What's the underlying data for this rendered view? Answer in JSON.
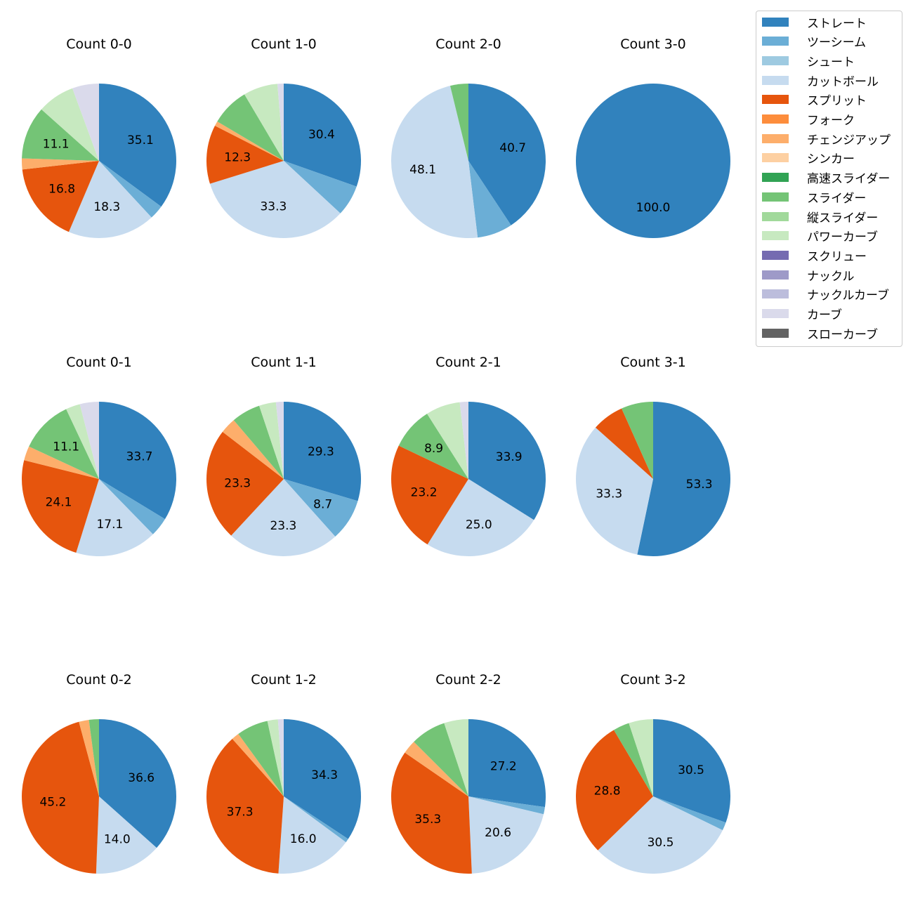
{
  "chart_data": {
    "type": "pie",
    "legend": {
      "placement": "top-right",
      "entries": [
        {
          "name": "ストレート",
          "color": "#3182bd"
        },
        {
          "name": "ツーシーム",
          "color": "#6baed6"
        },
        {
          "name": "シュート",
          "color": "#9ecae1"
        },
        {
          "name": "カットボール",
          "color": "#c6dbef"
        },
        {
          "name": "スプリット",
          "color": "#e6550d"
        },
        {
          "name": "フォーク",
          "color": "#fd8d3c"
        },
        {
          "name": "チェンジアップ",
          "color": "#fdae6b"
        },
        {
          "name": "シンカー",
          "color": "#fdd0a2"
        },
        {
          "name": "高速スライダー",
          "color": "#31a354"
        },
        {
          "name": "スライダー",
          "color": "#74c476"
        },
        {
          "name": "縦スライダー",
          "color": "#a1d99b"
        },
        {
          "name": "パワーカーブ",
          "color": "#c7e9c0"
        },
        {
          "name": "スクリュー",
          "color": "#756bb1"
        },
        {
          "name": "ナックル",
          "color": "#9e9ac8"
        },
        {
          "name": "ナックルカーブ",
          "color": "#bcbddc"
        },
        {
          "name": "カーブ",
          "color": "#dadaeb"
        },
        {
          "name": "スローカーブ",
          "color": "#636363"
        }
      ]
    },
    "pies": [
      {
        "title": "Count 0-0",
        "slices": [
          {
            "pitch": "ストレート",
            "value": 35.1,
            "label": "35.1"
          },
          {
            "pitch": "ツーシーム",
            "value": 3.0,
            "label": ""
          },
          {
            "pitch": "カットボール",
            "value": 18.3,
            "label": "18.3"
          },
          {
            "pitch": "スプリット",
            "value": 16.8,
            "label": "16.8"
          },
          {
            "pitch": "チェンジアップ",
            "value": 2.3,
            "label": ""
          },
          {
            "pitch": "スライダー",
            "value": 11.1,
            "label": "11.1"
          },
          {
            "pitch": "パワーカーブ",
            "value": 7.8,
            "label": ""
          },
          {
            "pitch": "カーブ",
            "value": 5.6,
            "label": ""
          }
        ]
      },
      {
        "title": "Count 1-0",
        "slices": [
          {
            "pitch": "ストレート",
            "value": 30.4,
            "label": "30.4"
          },
          {
            "pitch": "ツーシーム",
            "value": 6.5,
            "label": ""
          },
          {
            "pitch": "カットボール",
            "value": 33.3,
            "label": "33.3"
          },
          {
            "pitch": "スプリット",
            "value": 12.3,
            "label": "12.3"
          },
          {
            "pitch": "チェンジアップ",
            "value": 1.0,
            "label": ""
          },
          {
            "pitch": "スライダー",
            "value": 8.0,
            "label": ""
          },
          {
            "pitch": "パワーカーブ",
            "value": 7.2,
            "label": ""
          },
          {
            "pitch": "カーブ",
            "value": 1.3,
            "label": ""
          }
        ]
      },
      {
        "title": "Count 2-0",
        "slices": [
          {
            "pitch": "ストレート",
            "value": 40.7,
            "label": "40.7"
          },
          {
            "pitch": "ツーシーム",
            "value": 7.4,
            "label": ""
          },
          {
            "pitch": "カットボール",
            "value": 48.1,
            "label": "48.1"
          },
          {
            "pitch": "スライダー",
            "value": 3.8,
            "label": ""
          }
        ]
      },
      {
        "title": "Count 3-0",
        "slices": [
          {
            "pitch": "ストレート",
            "value": 100.0,
            "label": "100.0"
          }
        ]
      },
      {
        "title": "Count 0-1",
        "slices": [
          {
            "pitch": "ストレート",
            "value": 33.7,
            "label": "33.7"
          },
          {
            "pitch": "ツーシーム",
            "value": 4.0,
            "label": ""
          },
          {
            "pitch": "カットボール",
            "value": 17.1,
            "label": "17.1"
          },
          {
            "pitch": "スプリット",
            "value": 24.1,
            "label": "24.1"
          },
          {
            "pitch": "チェンジアップ",
            "value": 3.0,
            "label": ""
          },
          {
            "pitch": "スライダー",
            "value": 11.1,
            "label": "11.1"
          },
          {
            "pitch": "パワーカーブ",
            "value": 3.0,
            "label": ""
          },
          {
            "pitch": "カーブ",
            "value": 4.0,
            "label": ""
          }
        ]
      },
      {
        "title": "Count 1-1",
        "slices": [
          {
            "pitch": "ストレート",
            "value": 29.3,
            "label": "29.3"
          },
          {
            "pitch": "ツーシーム",
            "value": 8.7,
            "label": "8.7"
          },
          {
            "pitch": "カットボール",
            "value": 23.3,
            "label": "23.3"
          },
          {
            "pitch": "スプリット",
            "value": 23.3,
            "label": "23.3"
          },
          {
            "pitch": "チェンジアップ",
            "value": 3.3,
            "label": ""
          },
          {
            "pitch": "スライダー",
            "value": 6.0,
            "label": ""
          },
          {
            "pitch": "パワーカーブ",
            "value": 3.5,
            "label": ""
          },
          {
            "pitch": "カーブ",
            "value": 1.6,
            "label": ""
          }
        ]
      },
      {
        "title": "Count 2-1",
        "slices": [
          {
            "pitch": "ストレート",
            "value": 33.9,
            "label": "33.9"
          },
          {
            "pitch": "カットボール",
            "value": 25.0,
            "label": "25.0"
          },
          {
            "pitch": "スプリット",
            "value": 23.2,
            "label": "23.2"
          },
          {
            "pitch": "スライダー",
            "value": 8.9,
            "label": "8.9"
          },
          {
            "pitch": "パワーカーブ",
            "value": 7.2,
            "label": ""
          },
          {
            "pitch": "カーブ",
            "value": 1.8,
            "label": ""
          }
        ]
      },
      {
        "title": "Count 3-1",
        "slices": [
          {
            "pitch": "ストレート",
            "value": 53.3,
            "label": "53.3"
          },
          {
            "pitch": "カットボール",
            "value": 33.3,
            "label": "33.3"
          },
          {
            "pitch": "スプリット",
            "value": 6.7,
            "label": ""
          },
          {
            "pitch": "スライダー",
            "value": 6.7,
            "label": ""
          }
        ]
      },
      {
        "title": "Count 0-2",
        "slices": [
          {
            "pitch": "ストレート",
            "value": 36.6,
            "label": "36.6"
          },
          {
            "pitch": "カットボール",
            "value": 14.0,
            "label": "14.0"
          },
          {
            "pitch": "スプリット",
            "value": 45.2,
            "label": "45.2"
          },
          {
            "pitch": "チェンジアップ",
            "value": 2.1,
            "label": ""
          },
          {
            "pitch": "スライダー",
            "value": 2.1,
            "label": ""
          }
        ]
      },
      {
        "title": "Count 1-2",
        "slices": [
          {
            "pitch": "ストレート",
            "value": 34.3,
            "label": "34.3"
          },
          {
            "pitch": "ツーシーム",
            "value": 0.8,
            "label": ""
          },
          {
            "pitch": "カットボール",
            "value": 16.0,
            "label": "16.0"
          },
          {
            "pitch": "スプリット",
            "value": 37.3,
            "label": "37.3"
          },
          {
            "pitch": "チェンジアップ",
            "value": 1.6,
            "label": ""
          },
          {
            "pitch": "スライダー",
            "value": 6.6,
            "label": ""
          },
          {
            "pitch": "パワーカーブ",
            "value": 2.2,
            "label": ""
          },
          {
            "pitch": "カーブ",
            "value": 1.2,
            "label": ""
          }
        ]
      },
      {
        "title": "Count 2-2",
        "slices": [
          {
            "pitch": "ストレート",
            "value": 27.2,
            "label": "27.2"
          },
          {
            "pitch": "ツーシーム",
            "value": 1.5,
            "label": ""
          },
          {
            "pitch": "カットボール",
            "value": 20.6,
            "label": "20.6"
          },
          {
            "pitch": "スプリット",
            "value": 35.3,
            "label": "35.3"
          },
          {
            "pitch": "チェンジアップ",
            "value": 2.9,
            "label": ""
          },
          {
            "pitch": "スライダー",
            "value": 7.4,
            "label": ""
          },
          {
            "pitch": "パワーカーブ",
            "value": 5.1,
            "label": ""
          }
        ]
      },
      {
        "title": "Count 3-2",
        "slices": [
          {
            "pitch": "ストレート",
            "value": 30.5,
            "label": "30.5"
          },
          {
            "pitch": "ツーシーム",
            "value": 1.7,
            "label": ""
          },
          {
            "pitch": "カットボール",
            "value": 30.5,
            "label": "30.5"
          },
          {
            "pitch": "スプリット",
            "value": 28.8,
            "label": "28.8"
          },
          {
            "pitch": "スライダー",
            "value": 3.4,
            "label": ""
          },
          {
            "pitch": "パワーカーブ",
            "value": 5.1,
            "label": ""
          }
        ]
      }
    ]
  }
}
